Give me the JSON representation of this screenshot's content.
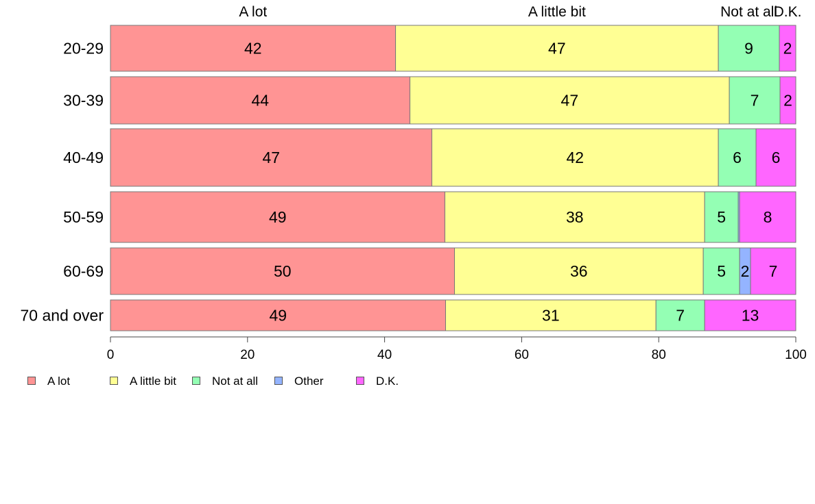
{
  "chart_data": {
    "type": "bar",
    "orientation": "horizontal",
    "stacked": true,
    "categories": [
      "20-29",
      "30-39",
      "40-49",
      "50-59",
      "60-69",
      "70 and over"
    ],
    "series": [
      {
        "name": "A lot",
        "color": "#ff9494",
        "values": [
          41.6,
          43.7,
          46.9,
          48.8,
          50.2,
          48.9
        ]
      },
      {
        "name": "A little bit",
        "color": "#ffff94",
        "values": [
          47.1,
          46.6,
          41.8,
          37.9,
          36.3,
          30.7
        ]
      },
      {
        "name": "Not at all",
        "color": "#94ffb4",
        "values": [
          8.9,
          7.4,
          5.5,
          4.9,
          5.3,
          7.1
        ]
      },
      {
        "name": "Other",
        "color": "#94b4ff",
        "values": [
          0.0,
          0.0,
          0.0,
          0.2,
          1.6,
          0.0
        ]
      },
      {
        "name": "D.K.",
        "color": "#ff66ff",
        "values": [
          2.4,
          2.3,
          5.8,
          8.2,
          6.6,
          13.3
        ]
      }
    ],
    "bar_labels": [
      [
        "42",
        "47",
        "9",
        "",
        "2"
      ],
      [
        "44",
        "47",
        "7",
        "",
        "2"
      ],
      [
        "47",
        "42",
        "6",
        "",
        "6"
      ],
      [
        "49",
        "38",
        "5",
        "",
        "8"
      ],
      [
        "50",
        "36",
        "5",
        "2",
        "7"
      ],
      [
        "49",
        "31",
        "7",
        "",
        "13"
      ]
    ],
    "top_labels": [
      "A lot",
      "A little bit",
      "Not at all",
      "",
      "D.K."
    ],
    "xlim": [
      0,
      100
    ],
    "xticks": [
      0,
      20,
      40,
      60,
      80,
      100
    ],
    "grid": false,
    "legend_position": "bottom-left"
  },
  "legend": {
    "items": [
      {
        "label": "A lot",
        "color": "#ff9494"
      },
      {
        "label": "A little bit",
        "color": "#ffff94"
      },
      {
        "label": "Not at all",
        "color": "#94ffb4"
      },
      {
        "label": "Other",
        "color": "#94b4ff"
      },
      {
        "label": "D.K.",
        "color": "#ff66ff"
      }
    ]
  }
}
